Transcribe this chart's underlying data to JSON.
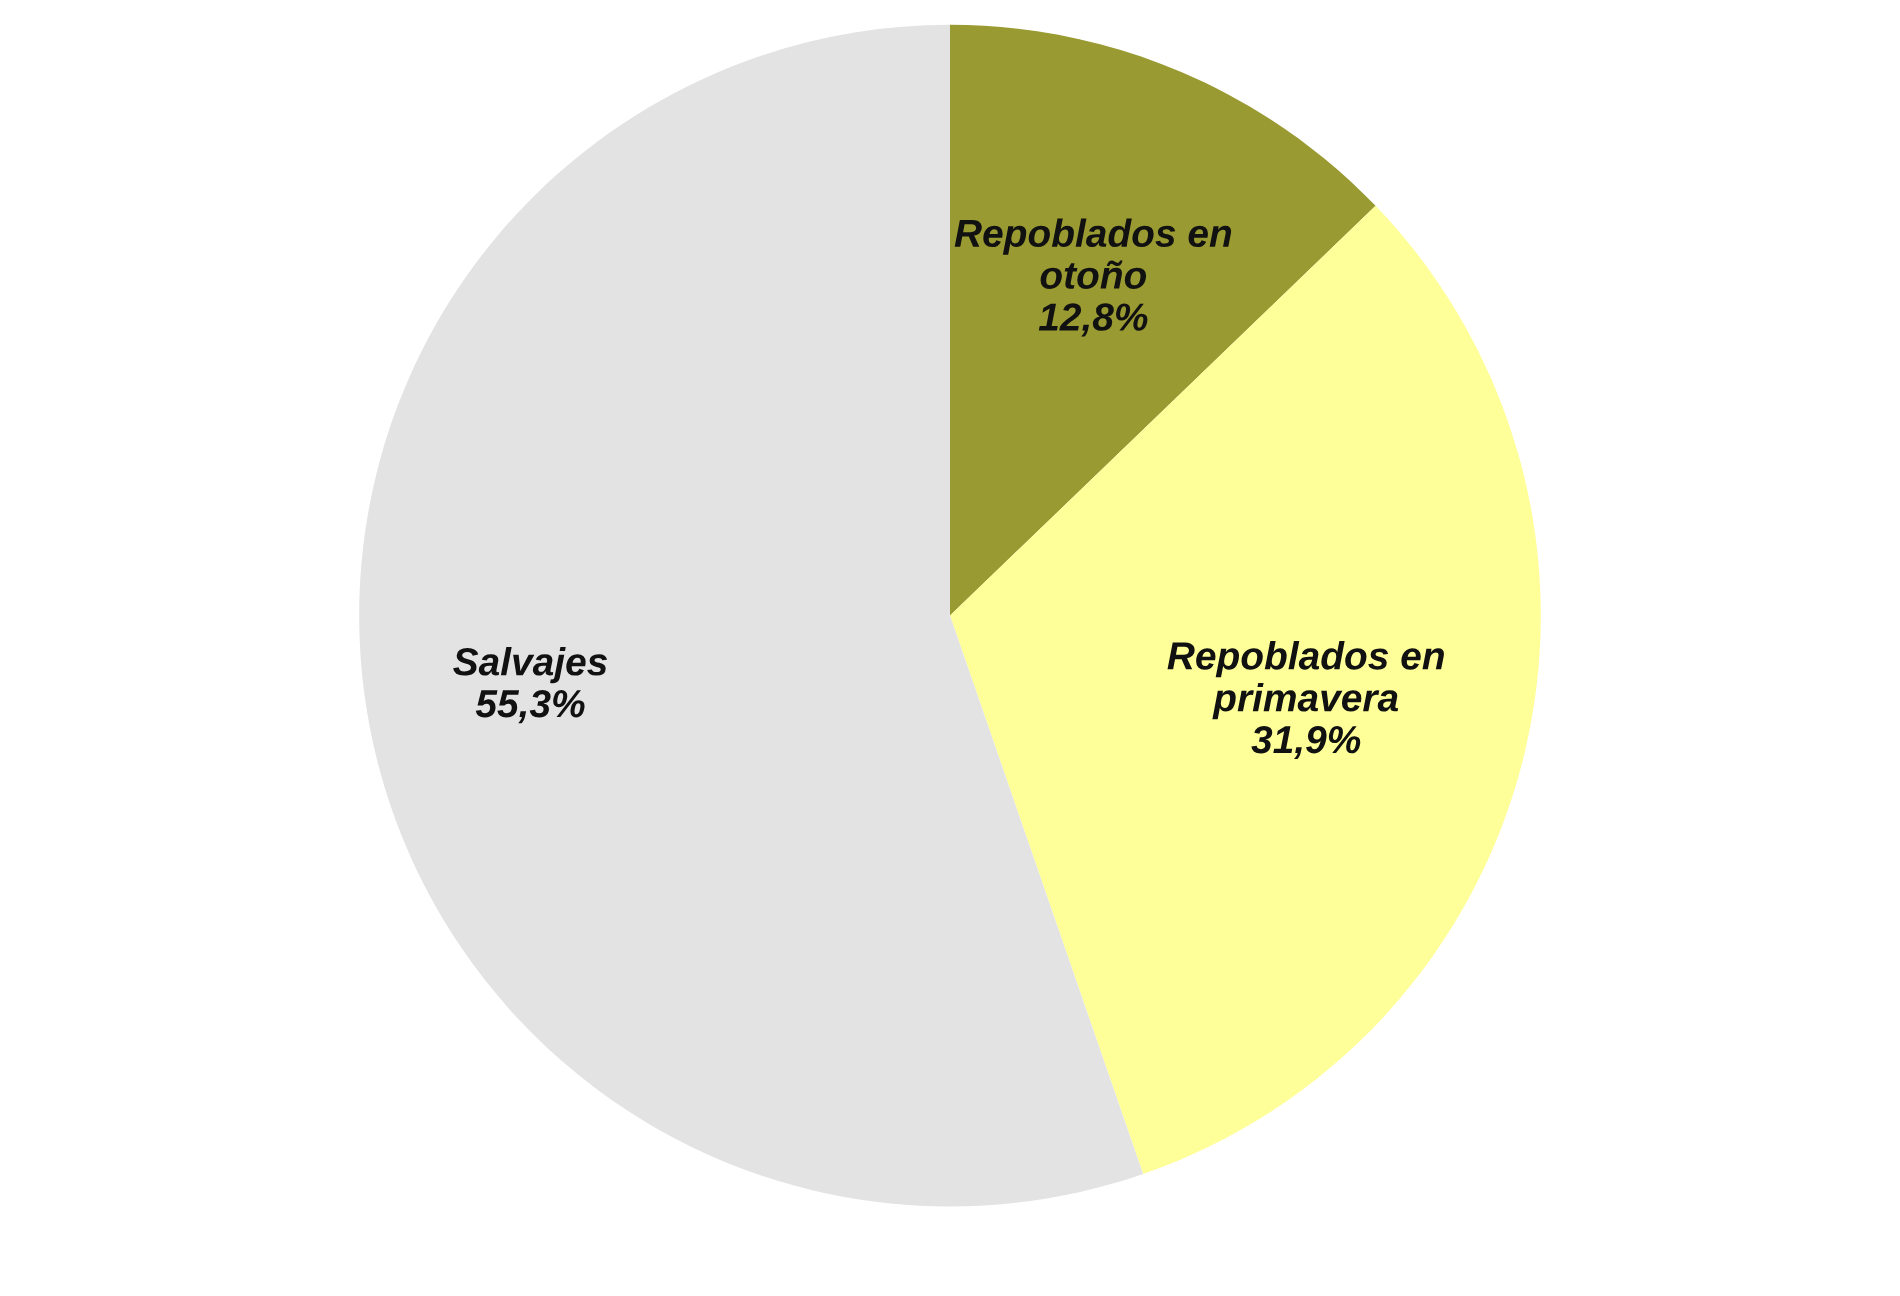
{
  "chart_data": {
    "type": "pie",
    "categories": [
      "Repoblados en otoño",
      "Repoblados en primavera",
      "Salvajes"
    ],
    "values": [
      12.8,
      31.9,
      55.3
    ],
    "value_labels": [
      "12,8%",
      "31,9%",
      "55,3%"
    ],
    "colors": [
      "#9a9a32",
      "#ffff99",
      "#e3e3e3"
    ],
    "legend": false
  }
}
